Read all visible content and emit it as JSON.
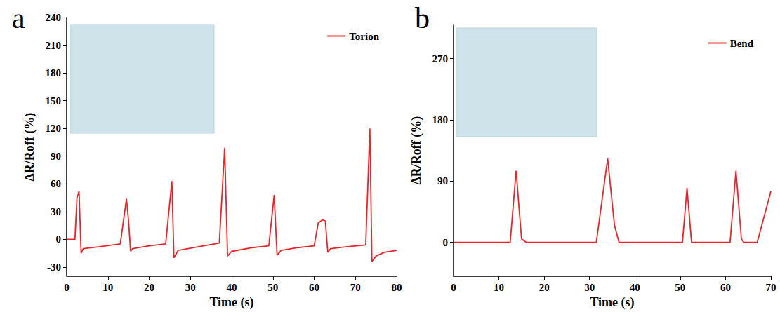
{
  "chart_data": [
    {
      "type": "line",
      "panel": "a",
      "x_label": "Time (s)",
      "y_label": "ΔR/Roff (%)",
      "x": [
        0,
        2,
        2.5,
        3,
        3.5,
        4,
        8,
        13,
        14.5,
        15,
        15.5,
        16,
        20,
        24,
        25.5,
        26,
        27,
        32,
        37,
        38.3,
        39,
        40,
        45,
        49,
        50.3,
        51,
        52,
        56,
        60,
        61,
        62,
        62.7,
        63.3,
        64,
        68,
        72.5,
        73.5,
        74,
        75,
        77,
        80
      ],
      "series": [
        {
          "name": "Torion",
          "color": "#e8262a",
          "values": [
            0,
            0,
            45,
            52,
            -15,
            -10,
            -8,
            -5,
            44,
            20,
            -13,
            -10,
            -7,
            -5,
            63,
            -20,
            -12,
            -8,
            -4,
            99,
            -18,
            -13,
            -9,
            -7,
            48,
            -17,
            -12,
            -9,
            -7,
            18,
            21,
            20,
            -14,
            -10,
            -8,
            -6,
            120,
            -24,
            -18,
            -14,
            -12
          ]
        }
      ],
      "xlim": [
        0,
        80
      ],
      "xticks": [
        0,
        10,
        20,
        30,
        40,
        50,
        60,
        70,
        80
      ],
      "ylim": [
        -40,
        240
      ],
      "yticks": [
        -30,
        0,
        30,
        60,
        90,
        120,
        150,
        180,
        210,
        240
      ],
      "legend": "upper right",
      "grid": false
    },
    {
      "type": "line",
      "panel": "b",
      "x_label": "Time (s)",
      "y_label": "ΔR/Roff (%)",
      "x": [
        0,
        12.5,
        13.8,
        15,
        16,
        31.5,
        34,
        35.5,
        36.5,
        50.5,
        51.5,
        52.5,
        61,
        62.3,
        63.5,
        64,
        67,
        70
      ],
      "series": [
        {
          "name": "Bend",
          "color": "#e8262a",
          "values": [
            0,
            0,
            105,
            5,
            0,
            0,
            123,
            25,
            0,
            0,
            80,
            0,
            0,
            105,
            5,
            0,
            0,
            75
          ]
        }
      ],
      "xlim": [
        0,
        70
      ],
      "xticks": [
        0,
        10,
        20,
        30,
        40,
        50,
        60,
        70
      ],
      "ylim": [
        -50,
        320
      ],
      "yticks": [
        0,
        90,
        180,
        270
      ],
      "legend": "upper right",
      "grid": false
    }
  ]
}
